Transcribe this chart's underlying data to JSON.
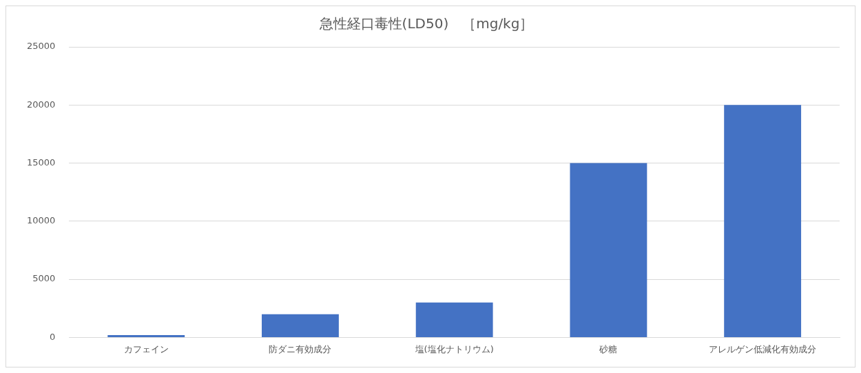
{
  "chart_data": {
    "type": "bar",
    "title": "急性経口毒性(LD50)　［mg/kg］",
    "categories": [
      "カフェイン",
      "防ダニ有効成分",
      "塩(塩化ナトリウム)",
      "砂糖",
      "アレルゲン低減化有効成分"
    ],
    "values": [
      200,
      2000,
      3000,
      15000,
      20000
    ],
    "color": "#4472c4",
    "ylim": [
      0,
      25000
    ],
    "yticks": [
      0,
      5000,
      10000,
      15000,
      20000,
      25000
    ],
    "grid": "y"
  }
}
